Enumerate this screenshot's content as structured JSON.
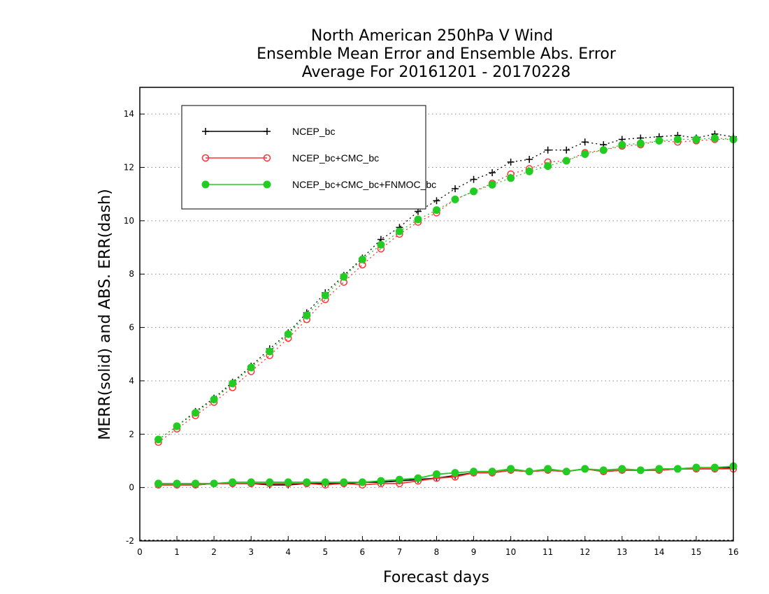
{
  "chart_data": {
    "type": "line",
    "title_lines": [
      "North American 250hPa V Wind",
      "Ensemble Mean Error and Ensemble Abs. Error",
      "Average For 20161201 - 20170228"
    ],
    "xlabel": "Forecast days",
    "ylabel": "MERR(solid) and ABS. ERR(dash)",
    "xlim": [
      0,
      16
    ],
    "ylim": [
      -2,
      15
    ],
    "xticks": [
      0,
      1,
      2,
      3,
      4,
      5,
      6,
      7,
      8,
      9,
      10,
      11,
      12,
      13,
      14,
      15,
      16
    ],
    "yticks": [
      -2,
      0,
      2,
      4,
      6,
      8,
      10,
      12,
      14
    ],
    "grid": "horizontal dotted at y ticks",
    "legend": {
      "placement": "top-left",
      "entries": [
        "NCEP_bc",
        "NCEP_bc+CMC_bc",
        "NCEP_bc+CMC_bc+FNMOC_bc"
      ]
    },
    "x": [
      0.5,
      1,
      1.5,
      2,
      2.5,
      3,
      3.5,
      4,
      4.5,
      5,
      5.5,
      6,
      6.5,
      7,
      7.5,
      8,
      8.5,
      9,
      9.5,
      10,
      10.5,
      11,
      11.5,
      12,
      12.5,
      13,
      13.5,
      14,
      14.5,
      15,
      15.5,
      16
    ],
    "series": [
      {
        "name": "NCEP_bc",
        "color": "#000000",
        "marker": "plus",
        "abs_err": [
          1.8,
          2.3,
          2.85,
          3.35,
          3.95,
          4.55,
          5.2,
          5.8,
          6.55,
          7.3,
          7.95,
          8.6,
          9.3,
          9.75,
          10.35,
          10.75,
          11.2,
          11.55,
          11.8,
          12.2,
          12.3,
          12.65,
          12.65,
          12.95,
          12.85,
          13.05,
          13.1,
          13.15,
          13.2,
          13.1,
          13.25,
          13.15
        ],
        "mean_err": [
          0.1,
          0.1,
          0.1,
          0.15,
          0.15,
          0.15,
          0.1,
          0.1,
          0.15,
          0.15,
          0.15,
          0.2,
          0.2,
          0.25,
          0.3,
          0.35,
          0.45,
          0.55,
          0.55,
          0.65,
          0.6,
          0.65,
          0.6,
          0.7,
          0.6,
          0.65,
          0.65,
          0.65,
          0.7,
          0.7,
          0.7,
          0.75
        ]
      },
      {
        "name": "NCEP_bc+CMC_bc",
        "color": "#ff3333",
        "marker": "open-circle",
        "abs_err": [
          1.7,
          2.2,
          2.7,
          3.2,
          3.75,
          4.35,
          4.95,
          5.6,
          6.3,
          7.05,
          7.7,
          8.35,
          8.95,
          9.5,
          9.95,
          10.3,
          10.8,
          11.1,
          11.4,
          11.75,
          11.95,
          12.2,
          12.25,
          12.55,
          12.65,
          12.8,
          12.85,
          13.0,
          12.95,
          13.0,
          13.05,
          13.05
        ],
        "mean_err": [
          0.1,
          0.1,
          0.1,
          0.15,
          0.15,
          0.15,
          0.15,
          0.15,
          0.15,
          0.1,
          0.15,
          0.1,
          0.15,
          0.15,
          0.25,
          0.35,
          0.4,
          0.55,
          0.55,
          0.65,
          0.6,
          0.65,
          0.6,
          0.7,
          0.6,
          0.65,
          0.65,
          0.65,
          0.7,
          0.7,
          0.7,
          0.7
        ]
      },
      {
        "name": "NCEP_bc+CMC_bc+FNMOC_bc",
        "color": "#22cc22",
        "marker": "filled-circle",
        "abs_err": [
          1.8,
          2.3,
          2.8,
          3.3,
          3.9,
          4.5,
          5.1,
          5.75,
          6.45,
          7.2,
          7.9,
          8.55,
          9.1,
          9.6,
          10.05,
          10.4,
          10.8,
          11.1,
          11.35,
          11.6,
          11.85,
          12.05,
          12.25,
          12.5,
          12.65,
          12.85,
          12.9,
          13.0,
          13.05,
          13.05,
          13.1,
          13.05
        ],
        "mean_err": [
          0.15,
          0.15,
          0.15,
          0.15,
          0.2,
          0.2,
          0.2,
          0.2,
          0.2,
          0.2,
          0.2,
          0.2,
          0.25,
          0.3,
          0.35,
          0.5,
          0.55,
          0.6,
          0.6,
          0.7,
          0.6,
          0.7,
          0.6,
          0.7,
          0.65,
          0.7,
          0.65,
          0.7,
          0.7,
          0.75,
          0.75,
          0.8
        ]
      }
    ]
  }
}
